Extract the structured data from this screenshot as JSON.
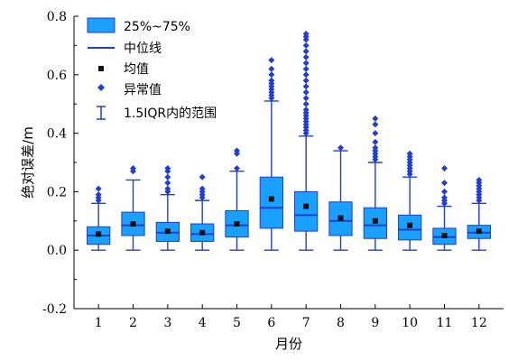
{
  "chart_data": {
    "type": "box",
    "xlabel": "月份",
    "ylabel": "绝对误差/m",
    "ylim": [
      -0.2,
      0.8
    ],
    "yticks": [
      "-0.2",
      "0.0",
      "0.2",
      "0.4",
      "0.6",
      "0.8"
    ],
    "categories": [
      "1",
      "2",
      "3",
      "4",
      "5",
      "6",
      "7",
      "8",
      "9",
      "10",
      "11",
      "12"
    ],
    "colors": {
      "box_fill": "#1aa0ff",
      "box_edge": "#1f3fd0",
      "median": "#1f3fd0",
      "mean": "#111111",
      "outlier": "#1f3fd0"
    },
    "legend": {
      "position": "top-left",
      "items": [
        {
          "key": "box",
          "label": "25%~75%"
        },
        {
          "key": "median",
          "label": "中位线"
        },
        {
          "key": "mean",
          "label": "均值"
        },
        {
          "key": "outlier",
          "label": "异常值"
        },
        {
          "key": "whisker",
          "label": "1.5IQR内的范围"
        }
      ]
    },
    "boxes": [
      {
        "month": "1",
        "whisker_low": 0.0,
        "q1": 0.02,
        "median": 0.05,
        "q3": 0.08,
        "whisker_high": 0.16,
        "mean": 0.055,
        "outliers": [
          0.17,
          0.18,
          0.19,
          0.21
        ]
      },
      {
        "month": "2",
        "whisker_low": 0.0,
        "q1": 0.05,
        "median": 0.085,
        "q3": 0.13,
        "whisker_high": 0.24,
        "mean": 0.09,
        "outliers": [
          0.27,
          0.28
        ]
      },
      {
        "month": "3",
        "whisker_low": 0.0,
        "q1": 0.03,
        "median": 0.06,
        "q3": 0.095,
        "whisker_high": 0.19,
        "mean": 0.065,
        "outliers": [
          0.2,
          0.21,
          0.23,
          0.25,
          0.27,
          0.28
        ]
      },
      {
        "month": "4",
        "whisker_low": 0.0,
        "q1": 0.03,
        "median": 0.055,
        "q3": 0.09,
        "whisker_high": 0.17,
        "mean": 0.06,
        "outliers": [
          0.18,
          0.19,
          0.2,
          0.21,
          0.25
        ]
      },
      {
        "month": "5",
        "whisker_low": 0.0,
        "q1": 0.045,
        "median": 0.085,
        "q3": 0.135,
        "whisker_high": 0.27,
        "mean": 0.09,
        "outliers": [
          0.28,
          0.33,
          0.34
        ]
      },
      {
        "month": "6",
        "whisker_low": 0.0,
        "q1": 0.075,
        "median": 0.145,
        "q3": 0.25,
        "whisker_high": 0.51,
        "mean": 0.175,
        "outliers": [
          0.52,
          0.53,
          0.54,
          0.55,
          0.56,
          0.57,
          0.58,
          0.6,
          0.62,
          0.65
        ]
      },
      {
        "month": "7",
        "whisker_low": 0.0,
        "q1": 0.065,
        "median": 0.12,
        "q3": 0.2,
        "whisker_high": 0.39,
        "mean": 0.15,
        "outliers": [
          0.4,
          0.41,
          0.42,
          0.43,
          0.44,
          0.45,
          0.46,
          0.47,
          0.48,
          0.5,
          0.52,
          0.54,
          0.56,
          0.58,
          0.6,
          0.62,
          0.64,
          0.66,
          0.68,
          0.7,
          0.72,
          0.73,
          0.74
        ]
      },
      {
        "month": "8",
        "whisker_low": 0.0,
        "q1": 0.05,
        "median": 0.1,
        "q3": 0.165,
        "whisker_high": 0.34,
        "mean": 0.11,
        "outliers": [
          0.35
        ]
      },
      {
        "month": "9",
        "whisker_low": 0.0,
        "q1": 0.04,
        "median": 0.085,
        "q3": 0.145,
        "whisker_high": 0.3,
        "mean": 0.1,
        "outliers": [
          0.31,
          0.32,
          0.33,
          0.34,
          0.35,
          0.37,
          0.4,
          0.43,
          0.45
        ]
      },
      {
        "month": "10",
        "whisker_low": 0.0,
        "q1": 0.035,
        "median": 0.07,
        "q3": 0.12,
        "whisker_high": 0.25,
        "mean": 0.085,
        "outliers": [
          0.26,
          0.27,
          0.28,
          0.29,
          0.3,
          0.31,
          0.32,
          0.33
        ]
      },
      {
        "month": "11",
        "whisker_low": 0.0,
        "q1": 0.02,
        "median": 0.045,
        "q3": 0.075,
        "whisker_high": 0.15,
        "mean": 0.05,
        "outliers": [
          0.16,
          0.17,
          0.18,
          0.2,
          0.23,
          0.28
        ]
      },
      {
        "month": "12",
        "whisker_low": 0.0,
        "q1": 0.04,
        "median": 0.06,
        "q3": 0.085,
        "whisker_high": 0.16,
        "mean": 0.065,
        "outliers": [
          0.17,
          0.18,
          0.19,
          0.2,
          0.21,
          0.22,
          0.23,
          0.24
        ]
      }
    ]
  }
}
